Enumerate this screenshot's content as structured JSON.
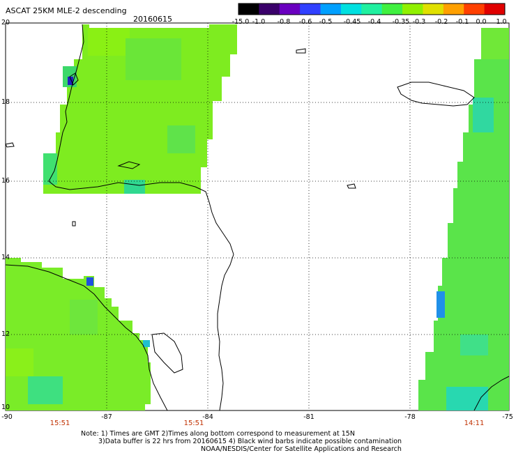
{
  "title": "ASCAT 25KM MLE-2 descending",
  "date": "20160615",
  "colorbar": {
    "labels": [
      "-15.0",
      "-1.0",
      "-0.8",
      "-0.6",
      "-0.5",
      "-0.45",
      "-0.4",
      "-0.35",
      "-0.3",
      "-0.2",
      "-0.1",
      "0.0",
      "1.0"
    ],
    "colors": [
      "#000000",
      "#3a006a",
      "#6a00c0",
      "#3040ff",
      "#00a0ff",
      "#00e0e0",
      "#20f0a0",
      "#40f040",
      "#90f000",
      "#e0e000",
      "#ffa000",
      "#ff4000",
      "#e00000"
    ]
  },
  "lat_labels": [
    "20",
    "18",
    "16",
    "14",
    "12",
    "10"
  ],
  "lon_labels": [
    "-90",
    "-87",
    "-84",
    "-81",
    "-78",
    "-75"
  ],
  "time_labels": [
    "15:51",
    "15:51",
    "14:11"
  ],
  "notes": {
    "line1": "Note: 1) Times are GMT 2)Times along bottom correspond to measurement at 15N",
    "line2": "3)Data buffer is 22 hrs from 20160615 4) Black wind barbs indicate possible contamination",
    "line3": "NOAA/NESDIS/Center for Satellite Applications and Research"
  }
}
